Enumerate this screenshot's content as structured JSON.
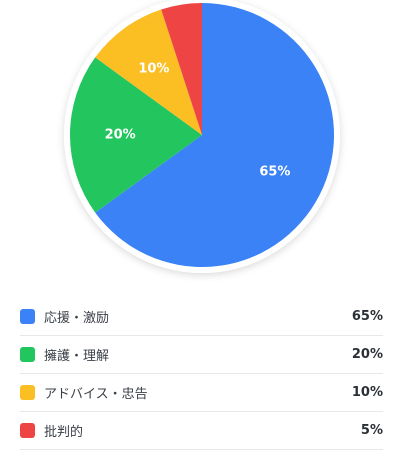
{
  "chart_data": {
    "type": "pie",
    "series": [
      {
        "label": "応援・激励",
        "value": 65,
        "display": "65%",
        "color": "#3b82f6"
      },
      {
        "label": "擁護・理解",
        "value": 20,
        "display": "20%",
        "color": "#22c55e"
      },
      {
        "label": "アドバイス・忠告",
        "value": 10,
        "display": "10%",
        "color": "#fbbf24"
      },
      {
        "label": "批判的",
        "value": 5,
        "display": "5%",
        "color": "#ef4444"
      }
    ],
    "start": "top",
    "direction": "clockwise",
    "legend_placement": "bottom"
  }
}
